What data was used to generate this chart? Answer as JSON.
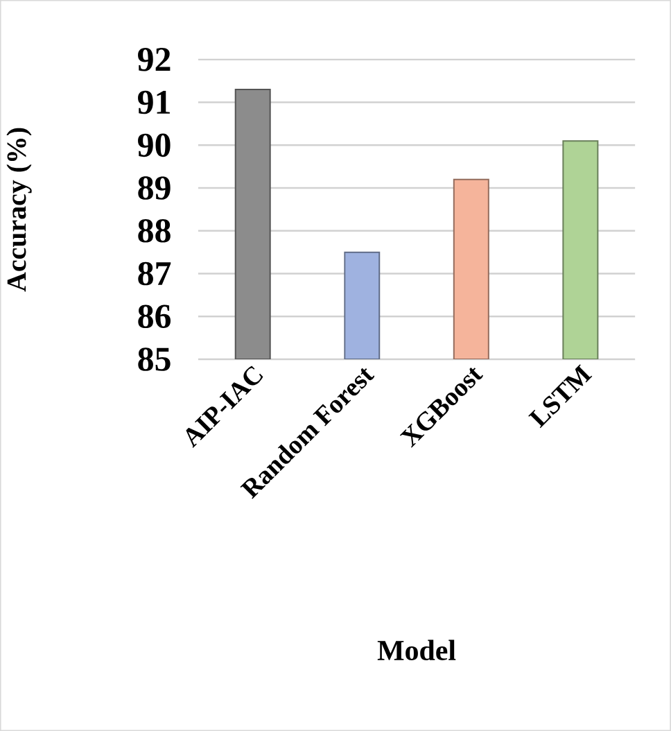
{
  "chart_data": {
    "type": "bar",
    "xlabel": "Model",
    "ylabel": "Accuracy (%)",
    "categories": [
      "AIP-IAC",
      "Random Forest",
      "XGBoost",
      "LSTM"
    ],
    "values": [
      91.3,
      87.5,
      89.2,
      90.1
    ],
    "colors": [
      "#8c8c8c",
      "#9fb2e0",
      "#f5b49b",
      "#afd396"
    ],
    "ylim": [
      85,
      92
    ],
    "yticks": [
      85,
      86,
      87,
      88,
      89,
      90,
      91,
      92
    ],
    "grid": "y"
  }
}
